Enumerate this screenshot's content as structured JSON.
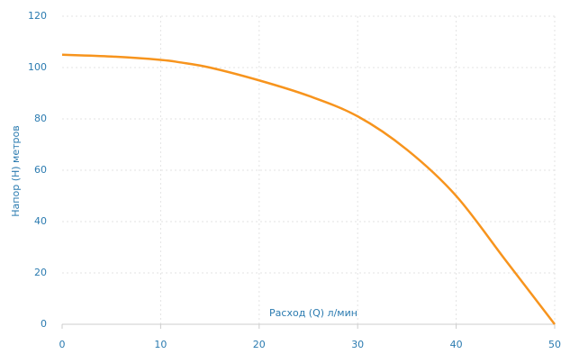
{
  "chart_data": {
    "type": "line",
    "xlabel": "Расход (Q) л/мин",
    "ylabel": "Напор (H) метров",
    "x": [
      0,
      5,
      10,
      12,
      15,
      20,
      25,
      30,
      35,
      40,
      45,
      50
    ],
    "series": [
      {
        "name": "Напор",
        "color": "#f7941d",
        "values": [
          105,
          104.3,
          103,
          102,
          100,
          95,
          89,
          81,
          68,
          50,
          25,
          0
        ]
      }
    ],
    "xlim": [
      0,
      50
    ],
    "xticks": [
      0,
      10,
      20,
      30,
      40,
      50
    ],
    "ylim": [
      0,
      120
    ],
    "yticks": [
      0,
      20,
      40,
      60,
      80,
      100,
      120
    ],
    "grid": true
  }
}
